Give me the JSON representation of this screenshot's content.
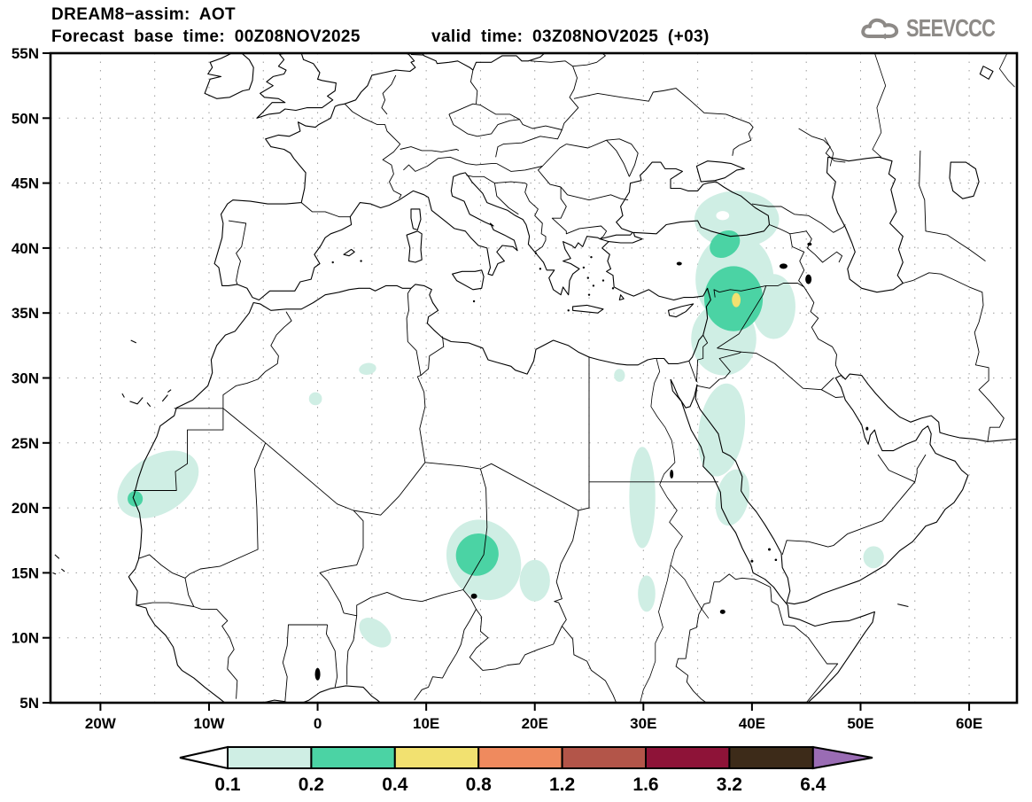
{
  "header": {
    "title": "DREAM8−assim: AOT",
    "forecast_base": "Forecast base time: 00Z08NOV2025",
    "valid_time": "valid time: 03Z08NOV2025 (+03)",
    "logo_text": "SEEVCCC"
  },
  "map": {
    "extent": {
      "lon_min": -24.6,
      "lon_max": 64.4,
      "lat_min": 5,
      "lat_max": 55
    },
    "grid_step_deg": 5,
    "x_tick_labels": [
      {
        "lon": -20,
        "label": "20W"
      },
      {
        "lon": -10,
        "label": "10W"
      },
      {
        "lon": 0,
        "label": "0"
      },
      {
        "lon": 10,
        "label": "10E"
      },
      {
        "lon": 20,
        "label": "20E"
      },
      {
        "lon": 30,
        "label": "30E"
      },
      {
        "lon": 40,
        "label": "40E"
      },
      {
        "lon": 50,
        "label": "50E"
      },
      {
        "lon": 60,
        "label": "60E"
      }
    ],
    "y_tick_labels": [
      {
        "lat": 55,
        "label": "55N"
      },
      {
        "lat": 50,
        "label": "50N"
      },
      {
        "lat": 45,
        "label": "45N"
      },
      {
        "lat": 40,
        "label": "40N"
      },
      {
        "lat": 35,
        "label": "35N"
      },
      {
        "lat": 30,
        "label": "30N"
      },
      {
        "lat": 25,
        "label": "25N"
      },
      {
        "lat": 20,
        "label": "20N"
      },
      {
        "lat": 15,
        "label": "15N"
      },
      {
        "lat": 10,
        "label": "10N"
      },
      {
        "lat": 5,
        "label": "5N"
      }
    ],
    "grid_color": "#9b9b9b",
    "coast_color": "#000000"
  },
  "legend": {
    "tick_labels": [
      "0.1",
      "0.2",
      "0.4",
      "0.8",
      "1.2",
      "1.6",
      "3.2",
      "6.4"
    ],
    "cell_colors": [
      "#cfeee4",
      "#4bd3a4",
      "#f2e170",
      "#ef8a5e",
      "#b35549",
      "#8e1338",
      "#3d2b19"
    ],
    "under_arrow_color": "#ffffff",
    "over_arrow_color": "#9a6cb4"
  },
  "chart_data": {
    "type": "filled-contour-map",
    "variable": "AOT (aerosol optical thickness)",
    "model": "DREAM8-assim",
    "base_time": "00Z08NOV2025",
    "valid_time": "03Z08NOV2025 (+03)",
    "contour_levels": [
      0.1,
      0.2,
      0.4,
      0.8,
      1.2,
      1.6,
      3.2,
      6.4
    ],
    "level_colors": {
      "0.1-0.2": "#cfeee4",
      "0.2-0.4": "#4bd3a4",
      "0.4-0.8": "#f2e170",
      "hole": "#ffffff"
    },
    "regions": [
      {
        "name": "eastern-anatolia",
        "level": "0.1-0.2",
        "lon": 38.6,
        "lat": 42.2,
        "rx": 3.9,
        "ry": 2.2,
        "rot": 0
      },
      {
        "name": "central-anatolia-syria",
        "level": "0.1-0.2",
        "lon": 38.4,
        "lat": 37.6,
        "rx": 3.6,
        "ry": 3.5,
        "rot": 0
      },
      {
        "name": "north-iraq",
        "level": "0.1-0.2",
        "lon": 42.0,
        "lat": 35.5,
        "rx": 2.0,
        "ry": 2.5,
        "rot": 0
      },
      {
        "name": "syria-jordan",
        "level": "0.1-0.2",
        "lon": 37.4,
        "lat": 33.0,
        "rx": 3.0,
        "ry": 2.8,
        "rot": 0
      },
      {
        "name": "nw-saudi-red-sea",
        "level": "0.1-0.2",
        "lon": 37.2,
        "lat": 26.0,
        "rx": 2.1,
        "ry": 3.6,
        "rot": 8
      },
      {
        "name": "central-red-sea",
        "level": "0.1-0.2",
        "lon": 38.2,
        "lat": 20.8,
        "rx": 1.5,
        "ry": 2.2,
        "rot": 12
      },
      {
        "name": "ne-sudan",
        "level": "0.1-0.2",
        "lon": 29.9,
        "lat": 20.8,
        "rx": 1.2,
        "ry": 3.9,
        "rot": 0
      },
      {
        "name": "se-sudan-small",
        "level": "0.1-0.2",
        "lon": 30.3,
        "lat": 13.4,
        "rx": 0.8,
        "ry": 1.4,
        "rot": 0
      },
      {
        "name": "egypt-small",
        "level": "0.1-0.2",
        "lon": 27.8,
        "lat": 30.2,
        "rx": 0.5,
        "ry": 0.5,
        "rot": 0
      },
      {
        "name": "chad-sudan",
        "level": "0.1-0.2",
        "lon": 15.3,
        "lat": 16.0,
        "rx": 3.3,
        "ry": 3.2,
        "rot": -30
      },
      {
        "name": "chad-east",
        "level": "0.1-0.2",
        "lon": 20.0,
        "lat": 14.4,
        "rx": 1.4,
        "ry": 1.6,
        "rot": 0
      },
      {
        "name": "mauritania-senegal",
        "level": "0.1-0.2",
        "lon": -14.7,
        "lat": 21.8,
        "rx": 4.1,
        "ry": 2.2,
        "rot": -32
      },
      {
        "name": "algeria-small-1",
        "level": "0.1-0.2",
        "lon": 4.6,
        "lat": 30.7,
        "rx": 0.8,
        "ry": 0.45,
        "rot": -10
      },
      {
        "name": "algeria-small-2",
        "level": "0.1-0.2",
        "lon": -0.2,
        "lat": 28.4,
        "rx": 0.6,
        "ry": 0.5,
        "rot": 0
      },
      {
        "name": "niger-nigeria",
        "level": "0.1-0.2",
        "lon": 5.3,
        "lat": 10.4,
        "rx": 1.7,
        "ry": 0.9,
        "rot": 40
      },
      {
        "name": "yemen-coast",
        "level": "0.1-0.2",
        "lon": 51.2,
        "lat": 16.2,
        "rx": 0.95,
        "ry": 0.85,
        "rot": 0
      },
      {
        "name": "anatolia-gap",
        "level": "hole",
        "lon": 37.3,
        "lat": 42.5,
        "rx": 0.6,
        "ry": 0.35,
        "rot": 0
      },
      {
        "name": "ne-anatolia-core",
        "level": "0.2-0.4",
        "lon": 37.5,
        "lat": 40.3,
        "rx": 1.5,
        "ry": 0.95,
        "rot": -35
      },
      {
        "name": "north-syria-core",
        "level": "0.2-0.4",
        "lon": 38.3,
        "lat": 36.1,
        "rx": 2.7,
        "ry": 2.5,
        "rot": 0
      },
      {
        "name": "chad-core",
        "level": "0.2-0.4",
        "lon": 14.7,
        "lat": 16.4,
        "rx": 2.0,
        "ry": 1.6,
        "rot": -40
      },
      {
        "name": "senegal-coast-core",
        "level": "0.2-0.4",
        "lon": -16.8,
        "lat": 20.7,
        "rx": 0.7,
        "ry": 0.6,
        "rot": 0
      },
      {
        "name": "north-syria-max",
        "level": "0.4-0.8",
        "lon": 38.55,
        "lat": 36.0,
        "rx": 0.4,
        "ry": 0.55,
        "rot": 0
      }
    ]
  }
}
